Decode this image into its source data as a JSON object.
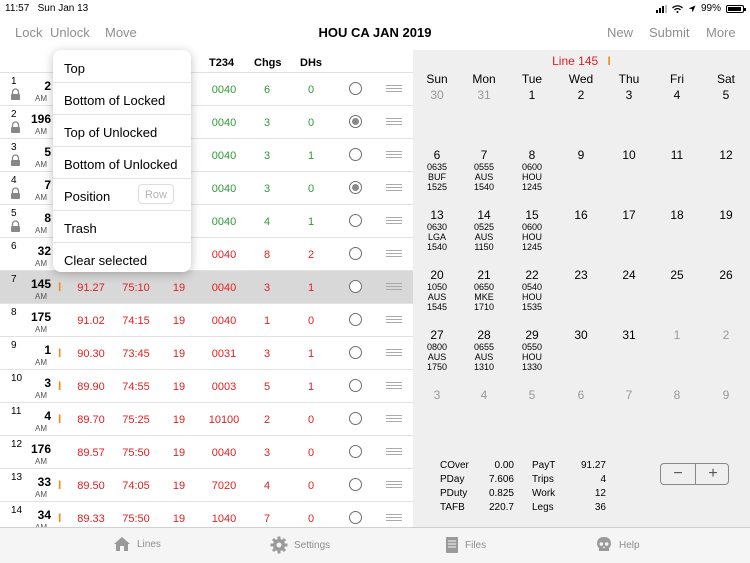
{
  "status": {
    "time": "11:57",
    "date": "Sun Jan 13",
    "battery": "99%"
  },
  "nav": {
    "lock": "Lock",
    "unlock": "Unlock",
    "move": "Move",
    "title": "HOU CA JAN 2019",
    "new": "New",
    "submit": "Submit",
    "more": "More"
  },
  "table": {
    "headers": {
      "t234": "T234",
      "chgs": "Chgs",
      "dhs": "DHs"
    },
    "rows": [
      {
        "idx": "1",
        "line": "2",
        "ampm": "AM",
        "locked": true,
        "t234": "0040",
        "chgs": "6",
        "dhs": "0",
        "selected": false
      },
      {
        "idx": "2",
        "line": "196",
        "ampm": "AM",
        "locked": true,
        "t234": "0040",
        "chgs": "3",
        "dhs": "0",
        "selected": true
      },
      {
        "idx": "3",
        "line": "5",
        "ampm": "AM",
        "locked": true,
        "t234": "0040",
        "chgs": "3",
        "dhs": "1",
        "selected": false
      },
      {
        "idx": "4",
        "line": "7",
        "ampm": "AM",
        "locked": true,
        "t234": "0040",
        "chgs": "3",
        "dhs": "0",
        "selected": true
      },
      {
        "idx": "5",
        "line": "8",
        "ampm": "AM",
        "locked": true,
        "t234": "0040",
        "chgs": "4",
        "dhs": "1",
        "selected": false
      },
      {
        "idx": "6",
        "line": "32",
        "ampm": "AM",
        "locked": false,
        "t234": "0040",
        "chgs": "8",
        "dhs": "2",
        "selected": false
      },
      {
        "idx": "7",
        "line": "145",
        "ampm": "AM",
        "flag": "I",
        "pay": "91.27",
        "block": "75:10",
        "n": "19",
        "t234": "0040",
        "chgs": "3",
        "dhs": "1",
        "selected": false,
        "highlight": true
      },
      {
        "idx": "8",
        "line": "175",
        "ampm": "AM",
        "flag": "",
        "pay": "91.02",
        "block": "74:15",
        "n": "19",
        "t234": "0040",
        "chgs": "1",
        "dhs": "0",
        "selected": false
      },
      {
        "idx": "9",
        "line": "1",
        "ampm": "AM",
        "flag": "I",
        "pay": "90.30",
        "block": "73:45",
        "n": "19",
        "t234": "0031",
        "chgs": "3",
        "dhs": "1",
        "selected": false
      },
      {
        "idx": "10",
        "line": "3",
        "ampm": "AM",
        "flag": "I",
        "pay": "89.90",
        "block": "74:55",
        "n": "19",
        "t234": "0003",
        "chgs": "5",
        "dhs": "1",
        "selected": false
      },
      {
        "idx": "11",
        "line": "4",
        "ampm": "AM",
        "flag": "I",
        "pay": "89.70",
        "block": "75:25",
        "n": "19",
        "t234": "10100",
        "chgs": "2",
        "dhs": "0",
        "selected": false
      },
      {
        "idx": "12",
        "line": "176",
        "ampm": "AM",
        "flag": "",
        "pay": "89.57",
        "block": "75:50",
        "n": "19",
        "t234": "0040",
        "chgs": "3",
        "dhs": "0",
        "selected": false
      },
      {
        "idx": "13",
        "line": "33",
        "ampm": "AM",
        "flag": "I",
        "pay": "89.50",
        "block": "74:05",
        "n": "19",
        "t234": "7020",
        "chgs": "4",
        "dhs": "0",
        "selected": false
      },
      {
        "idx": "14",
        "line": "34",
        "ampm": "AM",
        "flag": "I",
        "pay": "89.33",
        "block": "75:50",
        "n": "19",
        "t234": "1040",
        "chgs": "7",
        "dhs": "0",
        "selected": false
      }
    ]
  },
  "move_menu": {
    "items": [
      "Top",
      "Bottom of Locked",
      "Top of Unlocked",
      "Bottom of Unlocked",
      "Position",
      "Trash",
      "Clear selected"
    ],
    "row_placeholder": "Row"
  },
  "calendar": {
    "line_label": "Line 145",
    "line_flag": "I",
    "days_of_week": [
      "Sun",
      "Mon",
      "Tue",
      "Wed",
      "Thu",
      "Fri",
      "Sat"
    ],
    "weeks": [
      [
        {
          "d": "30",
          "grey": true
        },
        {
          "d": "31",
          "grey": true
        },
        {
          "d": "1"
        },
        {
          "d": "2"
        },
        {
          "d": "3"
        },
        {
          "d": "4"
        },
        {
          "d": "5"
        }
      ],
      [
        {
          "d": "6",
          "trip": [
            "0635",
            "BUF",
            "1525"
          ]
        },
        {
          "d": "7",
          "trip": [
            "0555",
            "AUS",
            "1540"
          ]
        },
        {
          "d": "8",
          "trip": [
            "0600",
            "HOU",
            "1245"
          ]
        },
        {
          "d": "9"
        },
        {
          "d": "10"
        },
        {
          "d": "11"
        },
        {
          "d": "12"
        }
      ],
      [
        {
          "d": "13",
          "trip": [
            "0630",
            "LGA",
            "1540"
          ]
        },
        {
          "d": "14",
          "trip": [
            "0525",
            "AUS",
            "1150"
          ]
        },
        {
          "d": "15",
          "trip": [
            "0600",
            "HOU",
            "1245"
          ]
        },
        {
          "d": "16"
        },
        {
          "d": "17"
        },
        {
          "d": "18"
        },
        {
          "d": "19"
        }
      ],
      [
        {
          "d": "20",
          "trip": [
            "1050",
            "AUS",
            "1545"
          ]
        },
        {
          "d": "21",
          "trip": [
            "0650",
            "MKE",
            "1710"
          ]
        },
        {
          "d": "22",
          "trip": [
            "0540",
            "HOU",
            "1535"
          ]
        },
        {
          "d": "23"
        },
        {
          "d": "24"
        },
        {
          "d": "25"
        },
        {
          "d": "26"
        }
      ],
      [
        {
          "d": "27",
          "trip": [
            "0800",
            "AUS",
            "1750"
          ]
        },
        {
          "d": "28",
          "trip": [
            "0655",
            "AUS",
            "1310"
          ]
        },
        {
          "d": "29",
          "trip": [
            "0550",
            "HOU",
            "1330"
          ]
        },
        {
          "d": "30"
        },
        {
          "d": "31"
        },
        {
          "d": "1",
          "grey": true
        },
        {
          "d": "2",
          "grey": true
        }
      ],
      [
        {
          "d": "3",
          "grey": true
        },
        {
          "d": "4",
          "grey": true
        },
        {
          "d": "5",
          "grey": true
        },
        {
          "d": "6",
          "grey": true
        },
        {
          "d": "7",
          "grey": true
        },
        {
          "d": "8",
          "grey": true
        },
        {
          "d": "9",
          "grey": true
        }
      ]
    ]
  },
  "stats": {
    "left": [
      {
        "label": "COver",
        "value": "0.00"
      },
      {
        "label": "PDay",
        "value": "7.606"
      },
      {
        "label": "PDuty",
        "value": "0.825"
      },
      {
        "label": "TAFB",
        "value": "220.7"
      }
    ],
    "right": [
      {
        "label": "PayT",
        "value": "91.27"
      },
      {
        "label": "Trips",
        "value": "4"
      },
      {
        "label": "Work",
        "value": "12"
      },
      {
        "label": "Legs",
        "value": "36"
      }
    ]
  },
  "stepper": {
    "minus": "−",
    "plus": "+"
  },
  "tabs": [
    {
      "label": "Lines",
      "icon": "house-icon"
    },
    {
      "label": "Settings",
      "icon": "gear-icon"
    },
    {
      "label": "Files",
      "icon": "files-icon"
    },
    {
      "label": "Help",
      "icon": "skull-icon"
    }
  ],
  "colors": {
    "accent_red": "#e02020",
    "green": "#2e9a3a",
    "flag_orange": "#f0901a"
  }
}
